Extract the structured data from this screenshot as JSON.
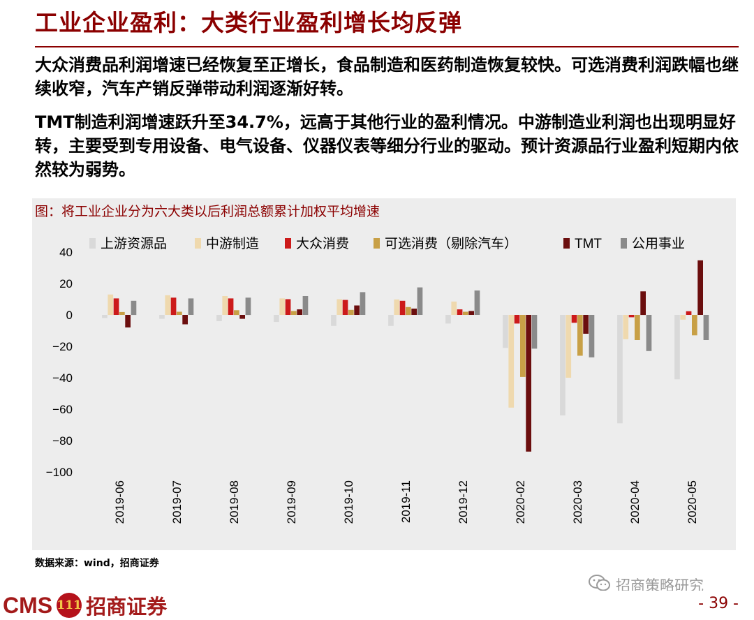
{
  "header": {
    "title": "工业企业盈利：大类行业盈利增长均反弹",
    "paragraph1": "大众消费品利润增速已经恢复至正增长，食品制造和医药制造恢复较快。可选消费利润跌幅也继续收窄，汽车产销反弹带动利润逐渐好转。",
    "paragraph2_prefix": "TMT",
    "paragraph2_middle": "制造利润增速跃升至",
    "paragraph2_value": "34.7%",
    "paragraph2_suffix": "，远高于其他行业的盈利情况。中游制造业利润也出现明显好转，主要受到专用设备、电气设备、仪器仪表等细分行业的驱动。预计资源品行业盈利短期内依然较为弱势。"
  },
  "chart_caption": "图：将工业企业分为六大类以后利润总额累计加权平均增速",
  "source": "数据来源：wind，招商证券",
  "watermark": "招商策略研究",
  "footer": {
    "logo_cms": "CMS",
    "logo_badge": "111",
    "logo_cn": "招商证券",
    "page": "- 39 -"
  },
  "chart_data": {
    "type": "bar",
    "categories": [
      "2019-06",
      "2019-07",
      "2019-08",
      "2019-09",
      "2019-10",
      "2019-11",
      "2019-12",
      "2020-02",
      "2020-03",
      "2020-04",
      "2020-05"
    ],
    "ylim": [
      -100,
      40
    ],
    "yticks": [
      40,
      20,
      0,
      -20,
      -40,
      -60,
      -80,
      -100
    ],
    "ytick_labels": [
      "40",
      "20",
      "0",
      "−20",
      "−40",
      "−60",
      "−80",
      "−100"
    ],
    "legend_position": "top",
    "grid": false,
    "series": [
      {
        "name": "上游资源品",
        "color": "#d9d9d9",
        "values": [
          -2,
          -2.5,
          -4,
          -4.5,
          -7,
          -7,
          -5.5,
          -21,
          -64,
          -69,
          -41
        ]
      },
      {
        "name": "中游制造",
        "color": "#efd9ae",
        "values": [
          13,
          12.5,
          12,
          10.5,
          10,
          9.8,
          8.5,
          -59,
          -40,
          -15.5,
          -3
        ]
      },
      {
        "name": "大众消费",
        "color": "#cc1a1a",
        "values": [
          10.5,
          11,
          10.5,
          10,
          9.5,
          9,
          3.5,
          -5.5,
          -5,
          -1.5,
          2.3
        ]
      },
      {
        "name": "可选消费（剔除汽车）",
        "color": "#c8a046",
        "values": [
          1.8,
          2,
          3,
          2.5,
          3.2,
          5,
          2,
          -39.5,
          -26,
          -16,
          -13
        ]
      },
      {
        "name": "TMT",
        "color": "#6b0e0e",
        "values": [
          -8,
          -6,
          -2.5,
          3.5,
          6,
          4,
          2.5,
          -87,
          -12,
          15,
          34.7
        ]
      },
      {
        "name": "公用事业",
        "color": "#8a8a8a",
        "values": [
          9,
          10.5,
          11,
          12,
          14.5,
          17.5,
          15.5,
          -21.5,
          -27,
          -23,
          -16
        ]
      }
    ]
  }
}
